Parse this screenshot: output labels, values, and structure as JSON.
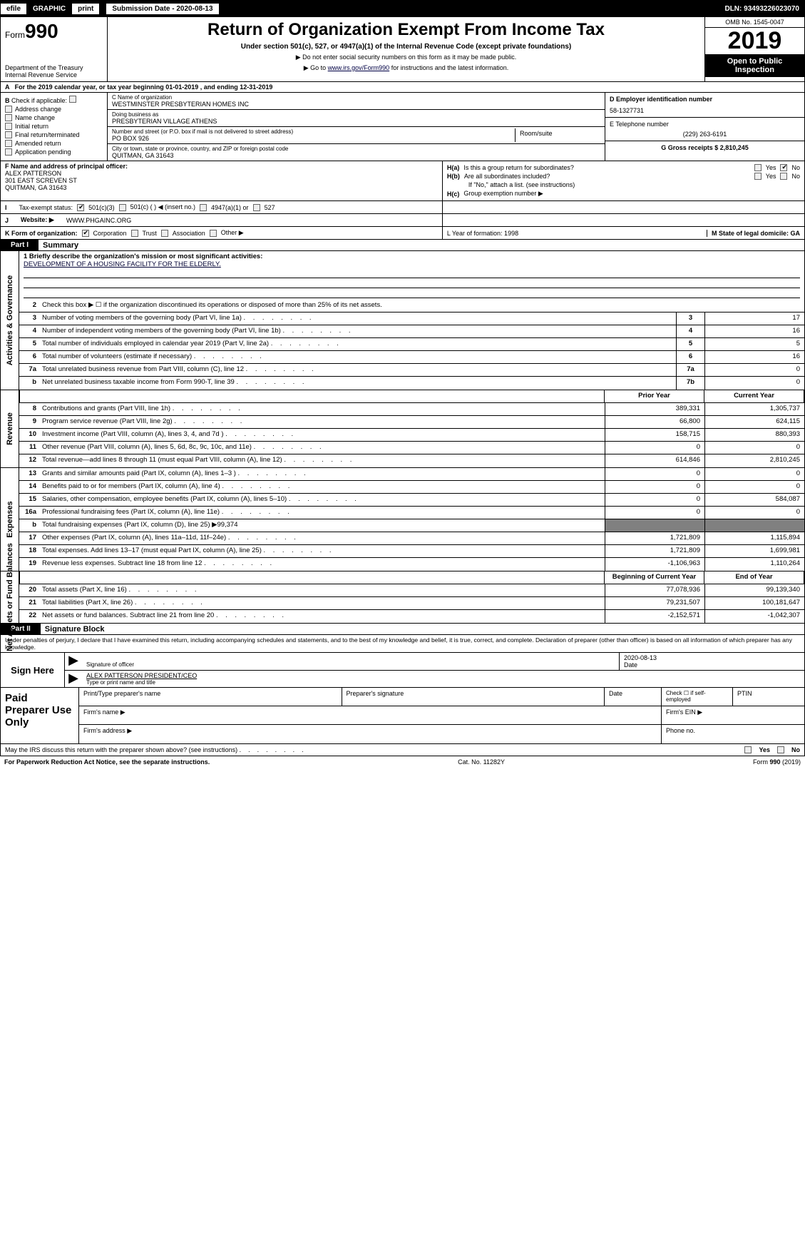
{
  "efile": {
    "labels": [
      "efile",
      "GRAPHIC",
      "print"
    ],
    "submission_label": "Submission Date - 2020-08-13",
    "dln": "DLN: 93493226023070"
  },
  "header": {
    "form_prefix": "Form",
    "form_number": "990",
    "dept": "Department of the Treasury",
    "irs": "Internal Revenue Service",
    "title": "Return of Organization Exempt From Income Tax",
    "subtitle": "Under section 501(c), 527, or 4947(a)(1) of the Internal Revenue Code (except private foundations)",
    "note1": "▶ Do not enter social security numbers on this form as it may be made public.",
    "note2": "▶ Go to www.irs.gov/Form990 for instructions and the latest information.",
    "omb": "OMB No. 1545-0047",
    "year": "2019",
    "open": "Open to Public Inspection"
  },
  "rowA": "For the 2019 calendar year, or tax year beginning 01-01-2019      , and ending 12-31-2019",
  "colB": {
    "label": "Check if applicable:",
    "items": [
      "Address change",
      "Name change",
      "Initial return",
      "Final return/terminated",
      "Amended return",
      "Application pending"
    ]
  },
  "colC": {
    "name_label": "C Name of organization",
    "name": "WESTMINSTER PRESBYTERIAN HOMES INC",
    "dba_label": "Doing business as",
    "dba": "PRESBYTERIAN VILLAGE ATHENS",
    "addr_label": "Number and street (or P.O. box if mail is not delivered to street address)",
    "addr": "PO BOX 926",
    "room_label": "Room/suite",
    "city_label": "City or town, state or province, country, and ZIP or foreign postal code",
    "city": "QUITMAN, GA   31643"
  },
  "colD": {
    "ein_label": "D Employer identification number",
    "ein": "58-1327731",
    "tel_label": "E Telephone number",
    "tel": "(229) 263-6191",
    "gross_label": "G Gross receipts $ 2,810,245"
  },
  "rowF": {
    "label": "F  Name and address of principal officer:",
    "name": "ALEX PATTERSON",
    "addr": "301 EAST SCREVEN ST",
    "city": "QUITMAN, GA   31643"
  },
  "rowH": {
    "ha": "Is this a group return for subordinates?",
    "hb": "Are all subordinates included?",
    "hb2": "If \"No,\" attach a list. (see instructions)",
    "hc": "Group exemption number ▶",
    "yes": "Yes",
    "no": "No",
    "ha_lbl": "H(a)",
    "hb_lbl": "H(b)",
    "hc_lbl": "H(c)"
  },
  "rowI": {
    "label": "Tax-exempt status:",
    "opts": [
      "501(c)(3)",
      "501(c) (   ) ◀ (insert no.)",
      "4947(a)(1) or",
      "527"
    ]
  },
  "rowJ": {
    "label": "Website: ▶",
    "val": "WWW.PHGAINC.ORG"
  },
  "rowK": {
    "label": "K Form of organization:",
    "opts": [
      "Corporation",
      "Trust",
      "Association",
      "Other ▶"
    ]
  },
  "rowL": {
    "label": "L Year of formation: 1998"
  },
  "rowM": {
    "label": "M State of legal domicile: GA"
  },
  "part1": {
    "tag": "Part I",
    "title": "Summary"
  },
  "mission": {
    "label": "1   Briefly describe the organization's mission or most significant activities:",
    "text": "DEVELOPMENT OF A HOUSING FACILITY FOR THE ELDERLY."
  },
  "gov": {
    "side": "Activities & Governance",
    "line2": "Check this box ▶ ☐  if the organization discontinued its operations or disposed of more than 25% of its net assets.",
    "lines": [
      {
        "n": "3",
        "d": "Number of voting members of the governing body (Part VI, line 1a)",
        "box": "3",
        "v": "17"
      },
      {
        "n": "4",
        "d": "Number of independent voting members of the governing body (Part VI, line 1b)",
        "box": "4",
        "v": "16"
      },
      {
        "n": "5",
        "d": "Total number of individuals employed in calendar year 2019 (Part V, line 2a)",
        "box": "5",
        "v": "5"
      },
      {
        "n": "6",
        "d": "Total number of volunteers (estimate if necessary)",
        "box": "6",
        "v": "16"
      },
      {
        "n": "7a",
        "d": "Total unrelated business revenue from Part VIII, column (C), line 12",
        "box": "7a",
        "v": "0"
      },
      {
        "n": "b",
        "d": "Net unrelated business taxable income from Form 990-T, line 39",
        "box": "7b",
        "v": "0"
      }
    ]
  },
  "rev": {
    "side": "Revenue",
    "hdr_prior": "Prior Year",
    "hdr_cur": "Current Year",
    "lines": [
      {
        "n": "8",
        "d": "Contributions and grants (Part VIII, line 1h)",
        "p": "389,331",
        "c": "1,305,737"
      },
      {
        "n": "9",
        "d": "Program service revenue (Part VIII, line 2g)",
        "p": "66,800",
        "c": "624,115"
      },
      {
        "n": "10",
        "d": "Investment income (Part VIII, column (A), lines 3, 4, and 7d )",
        "p": "158,715",
        "c": "880,393"
      },
      {
        "n": "11",
        "d": "Other revenue (Part VIII, column (A), lines 5, 6d, 8c, 9c, 10c, and 11e)",
        "p": "0",
        "c": "0"
      },
      {
        "n": "12",
        "d": "Total revenue—add lines 8 through 11 (must equal Part VIII, column (A), line 12)",
        "p": "614,846",
        "c": "2,810,245"
      }
    ]
  },
  "exp": {
    "side": "Expenses",
    "lines": [
      {
        "n": "13",
        "d": "Grants and similar amounts paid (Part IX, column (A), lines 1–3 )",
        "p": "0",
        "c": "0"
      },
      {
        "n": "14",
        "d": "Benefits paid to or for members (Part IX, column (A), line 4)",
        "p": "0",
        "c": "0"
      },
      {
        "n": "15",
        "d": "Salaries, other compensation, employee benefits (Part IX, column (A), lines 5–10)",
        "p": "0",
        "c": "584,087"
      },
      {
        "n": "16a",
        "d": "Professional fundraising fees (Part IX, column (A), line 11e)",
        "p": "0",
        "c": "0"
      },
      {
        "n": "b",
        "d": "Total fundraising expenses (Part IX, column (D), line 25) ▶99,374",
        "p": "SHADE",
        "c": "SHADE"
      },
      {
        "n": "17",
        "d": "Other expenses (Part IX, column (A), lines 11a–11d, 11f–24e)",
        "p": "1,721,809",
        "c": "1,115,894"
      },
      {
        "n": "18",
        "d": "Total expenses. Add lines 13–17 (must equal Part IX, column (A), line 25)",
        "p": "1,721,809",
        "c": "1,699,981"
      },
      {
        "n": "19",
        "d": "Revenue less expenses. Subtract line 18 from line 12",
        "p": "-1,106,963",
        "c": "1,110,264"
      }
    ]
  },
  "net": {
    "side": "Net Assets or Fund Balances",
    "hdr_beg": "Beginning of Current Year",
    "hdr_end": "End of Year",
    "lines": [
      {
        "n": "20",
        "d": "Total assets (Part X, line 16)",
        "p": "77,078,936",
        "c": "99,139,340"
      },
      {
        "n": "21",
        "d": "Total liabilities (Part X, line 26)",
        "p": "79,231,507",
        "c": "100,181,647"
      },
      {
        "n": "22",
        "d": "Net assets or fund balances. Subtract line 21 from line 20",
        "p": "-2,152,571",
        "c": "-1,042,307"
      }
    ]
  },
  "part2": {
    "tag": "Part II",
    "title": "Signature Block"
  },
  "penalty": "Under penalties of perjury, I declare that I have examined this return, including accompanying schedules and statements, and to the best of my knowledge and belief, it is true, correct, and complete. Declaration of preparer (other than officer) is based on all information of which preparer has any knowledge.",
  "sign": {
    "here": "Sign Here",
    "date": "2020-08-13",
    "sig_lbl": "Signature of officer",
    "date_lbl": "Date",
    "name": "ALEX PATTERSON  PRESIDENT/CEO",
    "name_lbl": "Type or print name and title"
  },
  "prep": {
    "label": "Paid Preparer Use Only",
    "h1": "Print/Type preparer's name",
    "h2": "Preparer's signature",
    "h3": "Date",
    "h4": "Check ☐ if self-employed",
    "h5": "PTIN",
    "firm_name": "Firm's name    ▶",
    "firm_ein": "Firm's EIN ▶",
    "firm_addr": "Firm's address ▶",
    "phone": "Phone no."
  },
  "discuss": {
    "q": "May the IRS discuss this return with the preparer shown above? (see instructions)",
    "yes": "Yes",
    "no": "No"
  },
  "footer": {
    "left": "For Paperwork Reduction Act Notice, see the separate instructions.",
    "mid": "Cat. No. 11282Y",
    "right": "Form 990 (2019)"
  }
}
